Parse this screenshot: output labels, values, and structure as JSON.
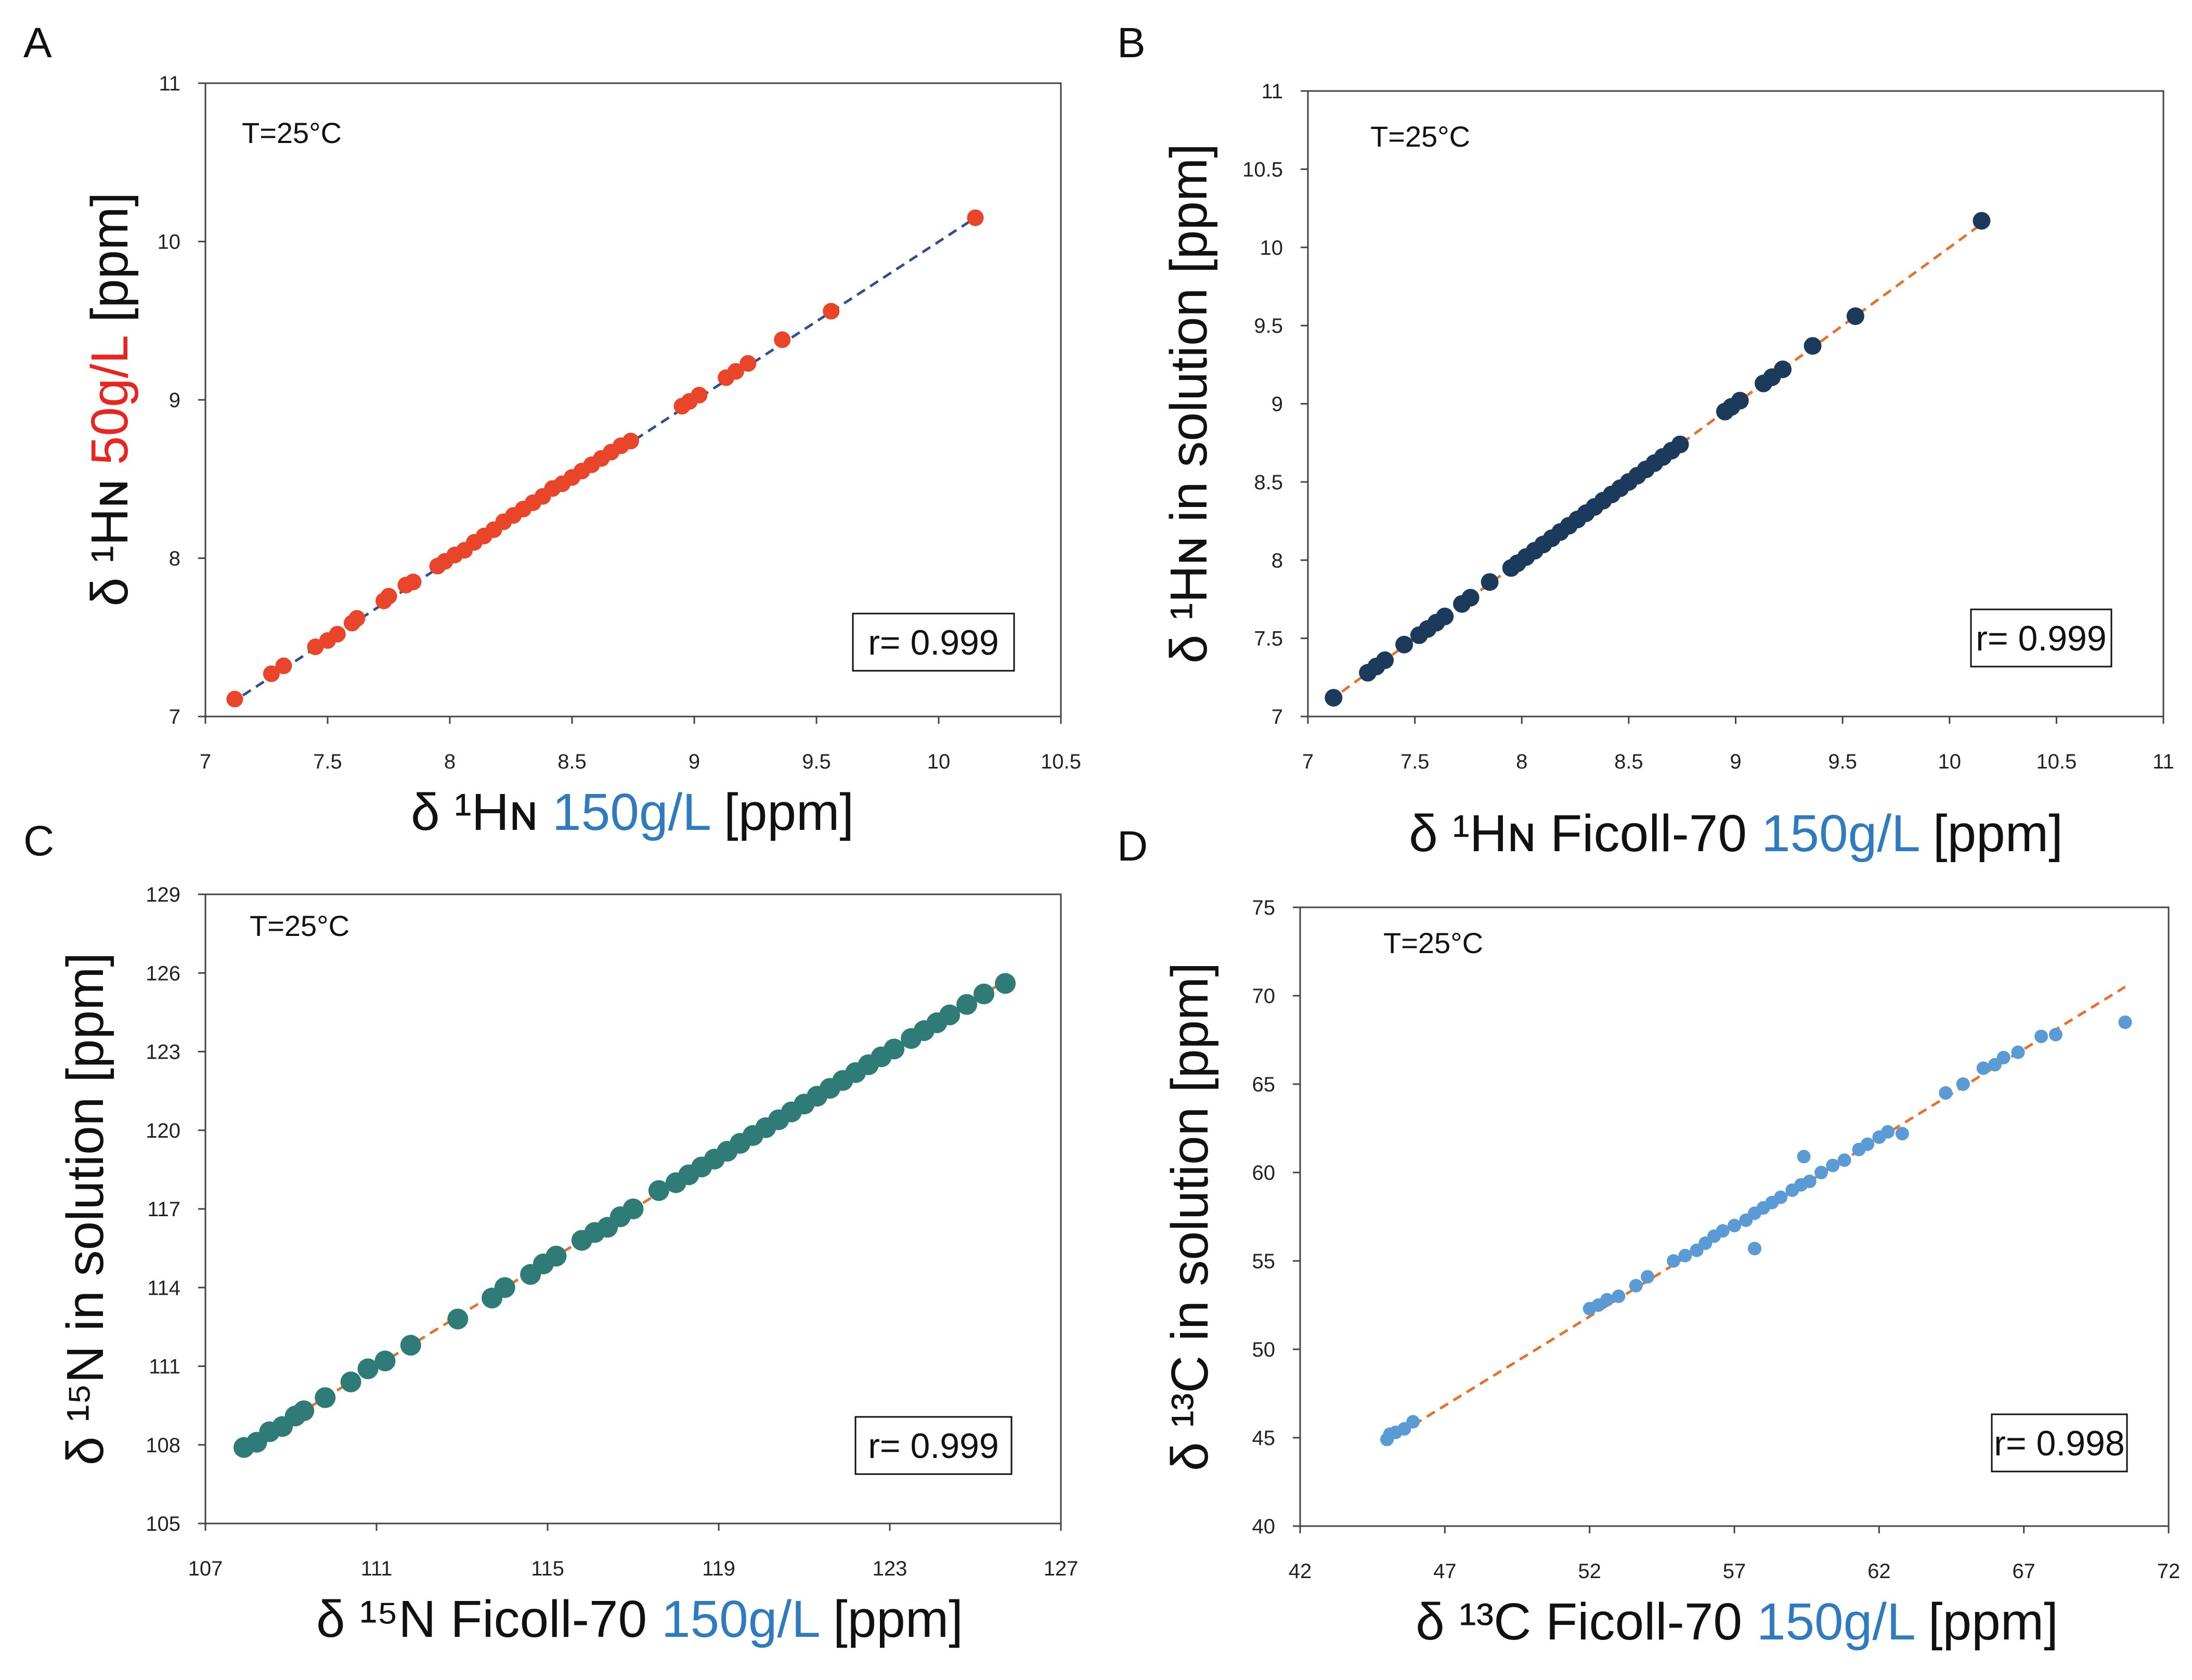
{
  "chart_data": [
    {
      "id": "A",
      "type": "scatter",
      "panel_label": "A",
      "annotation": "T=25°C",
      "correlation": "r= 0.999",
      "xlim": [
        7,
        10.5
      ],
      "ylim": [
        7,
        11
      ],
      "xticks": [
        "7",
        "7.5",
        "8",
        "8.5",
        "9",
        "9.5",
        "10",
        "10.5"
      ],
      "yticks": [
        "7",
        "8",
        "9",
        "10",
        "11"
      ],
      "xlabel": {
        "pre": "δ ¹Hɴ ",
        "colored": "150g/L",
        "post": " [ppm]",
        "color": "#2f7bbd"
      },
      "ylabel": {
        "pre": "δ ¹Hɴ ",
        "colored": "50g/L",
        "post": " [ppm]",
        "color": "#e8251f"
      },
      "point_color": "#e8452a",
      "line_color": "#2f4f8f",
      "fit": [
        [
          7.1,
          7.08
        ],
        [
          10.15,
          10.15
        ]
      ],
      "x": [
        7.12,
        7.27,
        7.32,
        7.45,
        7.5,
        7.54,
        7.6,
        7.62,
        7.73,
        7.75,
        7.82,
        7.85,
        7.95,
        7.98,
        8.02,
        8.06,
        8.1,
        8.14,
        8.18,
        8.22,
        8.26,
        8.3,
        8.34,
        8.38,
        8.42,
        8.46,
        8.5,
        8.54,
        8.58,
        8.62,
        8.66,
        8.7,
        8.74,
        8.95,
        8.98,
        9.02,
        9.13,
        9.17,
        9.22,
        9.36,
        9.56,
        10.15
      ],
      "y": [
        7.11,
        7.27,
        7.32,
        7.44,
        7.48,
        7.52,
        7.59,
        7.62,
        7.73,
        7.76,
        7.83,
        7.85,
        7.95,
        7.98,
        8.02,
        8.05,
        8.1,
        8.14,
        8.18,
        8.23,
        8.27,
        8.31,
        8.35,
        8.39,
        8.44,
        8.47,
        8.51,
        8.55,
        8.59,
        8.63,
        8.67,
        8.71,
        8.74,
        8.96,
        8.99,
        9.03,
        9.14,
        9.18,
        9.23,
        9.38,
        9.56,
        10.15
      ]
    },
    {
      "id": "B",
      "type": "scatter",
      "panel_label": "B",
      "annotation": "T=25°C",
      "correlation": "r= 0.999",
      "xlim": [
        7,
        11
      ],
      "ylim": [
        7,
        11
      ],
      "xticks": [
        "7",
        "7.5",
        "8",
        "8.5",
        "9",
        "9.5",
        "10",
        "10.5",
        "11"
      ],
      "yticks": [
        "7",
        "7.5",
        "8",
        "8.5",
        "9",
        "9.5",
        "10",
        "10.5",
        "11"
      ],
      "xlabel": {
        "pre": "δ ¹Hɴ Ficoll-70 ",
        "colored": "150g/L",
        "post": " [ppm]",
        "color": "#2f7bbd"
      },
      "ylabel": {
        "pre": "δ ¹Hɴ in solution  [ppm]",
        "colored": "",
        "post": "",
        "color": "#111111"
      },
      "point_color": "#1b3a5c",
      "line_color": "#e8702a",
      "fit": [
        [
          7.1,
          7.1
        ],
        [
          10.15,
          10.15
        ]
      ],
      "x": [
        7.12,
        7.28,
        7.32,
        7.36,
        7.45,
        7.52,
        7.56,
        7.6,
        7.64,
        7.72,
        7.76,
        7.85,
        7.95,
        7.98,
        8.02,
        8.06,
        8.1,
        8.14,
        8.18,
        8.22,
        8.26,
        8.3,
        8.34,
        8.38,
        8.42,
        8.46,
        8.5,
        8.54,
        8.58,
        8.62,
        8.66,
        8.7,
        8.74,
        8.95,
        8.98,
        9.02,
        9.13,
        9.17,
        9.22,
        9.36,
        9.56,
        10.15
      ],
      "y": [
        7.12,
        7.28,
        7.32,
        7.36,
        7.46,
        7.52,
        7.56,
        7.6,
        7.64,
        7.72,
        7.76,
        7.86,
        7.95,
        7.98,
        8.02,
        8.06,
        8.1,
        8.14,
        8.18,
        8.22,
        8.26,
        8.3,
        8.34,
        8.38,
        8.42,
        8.46,
        8.5,
        8.54,
        8.58,
        8.62,
        8.66,
        8.7,
        8.74,
        8.95,
        8.98,
        9.02,
        9.13,
        9.17,
        9.22,
        9.37,
        9.56,
        10.17
      ]
    },
    {
      "id": "C",
      "type": "scatter",
      "panel_label": "C",
      "annotation": "T=25°C",
      "correlation": "r= 0.999",
      "xlim": [
        107,
        127
      ],
      "ylim": [
        105,
        129
      ],
      "xticks": [
        "107",
        "111",
        "115",
        "119",
        "123",
        "127"
      ],
      "xtick_values": [
        107,
        111,
        115,
        119,
        123,
        127
      ],
      "yticks": [
        "105",
        "108",
        "111",
        "114",
        "117",
        "120",
        "123",
        "126",
        "129"
      ],
      "xlabel": {
        "pre": "δ ¹⁵N Ficoll-70 ",
        "colored": "150g/L",
        "post": " [ppm]",
        "color": "#2f7bbd"
      },
      "ylabel": {
        "pre": "δ ¹⁵N in solution  [ppm]",
        "colored": "",
        "post": "",
        "color": "#111111"
      },
      "point_color": "#2e7b78",
      "line_color": "#e8702a",
      "fit": [
        [
          107.9,
          107.9
        ],
        [
          125.7,
          125.7
        ]
      ],
      "x": [
        107.9,
        108.2,
        108.5,
        108.8,
        109.1,
        109.3,
        109.8,
        110.4,
        110.8,
        111.2,
        111.8,
        112.9,
        113.7,
        114,
        114.6,
        114.9,
        115.2,
        115.8,
        116.1,
        116.4,
        116.7,
        117,
        117.6,
        118,
        118.3,
        118.6,
        118.9,
        119.2,
        119.5,
        119.8,
        120.1,
        120.4,
        120.7,
        121,
        121.3,
        121.6,
        121.9,
        122.2,
        122.5,
        122.8,
        123.1,
        123.5,
        123.8,
        124.1,
        124.4,
        124.8,
        125.2,
        125.7
      ],
      "y": [
        107.9,
        108.1,
        108.5,
        108.7,
        109.1,
        109.3,
        109.8,
        110.4,
        110.9,
        111.2,
        111.8,
        112.8,
        113.6,
        114,
        114.5,
        114.9,
        115.2,
        115.8,
        116.1,
        116.3,
        116.7,
        117,
        117.7,
        118,
        118.3,
        118.6,
        118.9,
        119.2,
        119.5,
        119.8,
        120.1,
        120.4,
        120.7,
        121,
        121.3,
        121.6,
        121.9,
        122.2,
        122.5,
        122.8,
        123.1,
        123.5,
        123.8,
        124.1,
        124.4,
        124.8,
        125.2,
        125.6
      ]
    },
    {
      "id": "D",
      "type": "scatter",
      "panel_label": "D",
      "annotation": "T=25°C",
      "correlation": "r= 0.998",
      "xlim": [
        42,
        72
      ],
      "ylim": [
        40,
        75
      ],
      "xticks": [
        "42",
        "47",
        "52",
        "57",
        "62",
        "67",
        "72"
      ],
      "xtick_values": [
        42,
        47,
        52,
        57,
        62,
        67,
        72
      ],
      "yticks": [
        "40",
        "45",
        "50",
        "55",
        "60",
        "65",
        "70",
        "75"
      ],
      "xlabel": {
        "pre": "δ ¹³C Ficoll-70 ",
        "colored": "150g/L",
        "post": " [ppm]",
        "color": "#2f7bbd"
      },
      "ylabel": {
        "pre": "δ ¹³C in solution  [ppm]",
        "colored": "",
        "post": "",
        "color": "#111111"
      },
      "point_color": "#5b9bd5",
      "line_color": "#e8702a",
      "fit": [
        [
          45,
          44.8
        ],
        [
          70.5,
          70.5
        ]
      ],
      "x": [
        45,
        45.1,
        45.3,
        45.6,
        45.9,
        52,
        52.3,
        52.6,
        53,
        53.6,
        54,
        54.9,
        55.3,
        55.7,
        56,
        56.3,
        56.6,
        57,
        57.4,
        57.7,
        58,
        58.3,
        58.6,
        59,
        59.3,
        59.4,
        59.6,
        60,
        60.4,
        60.8,
        61.3,
        61.6,
        62,
        62.3,
        62.8,
        57.7,
        64.3,
        64.9,
        65.6,
        66,
        66.3,
        66.8,
        67.6,
        68.1,
        70.5
      ],
      "y": [
        44.9,
        45.2,
        45.3,
        45.5,
        45.9,
        52.3,
        52.5,
        52.8,
        53,
        53.6,
        54.1,
        55,
        55.3,
        55.6,
        56,
        56.4,
        56.7,
        57,
        57.3,
        57.7,
        58,
        58.3,
        58.6,
        59,
        59.3,
        60.9,
        59.5,
        60,
        60.4,
        60.7,
        61.3,
        61.6,
        62,
        62.3,
        62.2,
        55.7,
        64.5,
        65,
        65.9,
        66.1,
        66.5,
        66.8,
        67.7,
        67.8,
        68.5
      ]
    }
  ]
}
